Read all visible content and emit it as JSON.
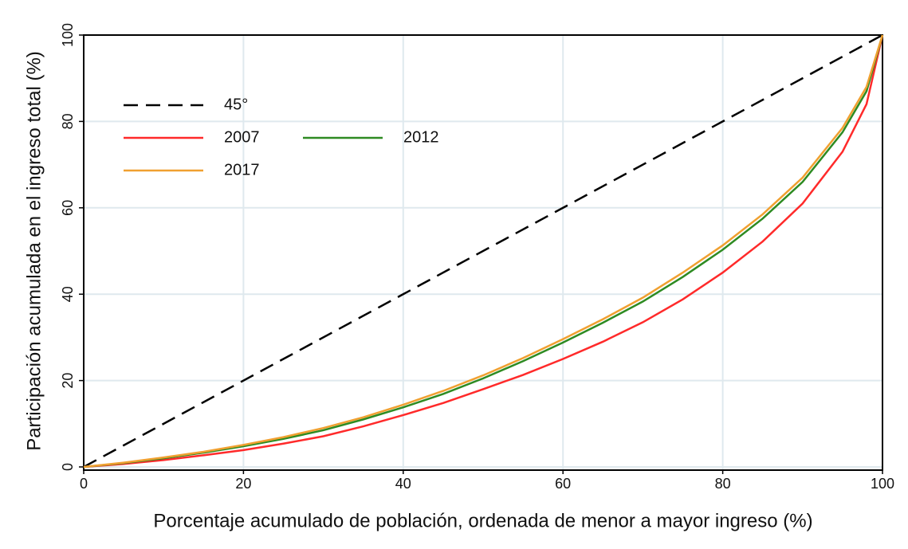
{
  "chart_data": {
    "type": "line",
    "xlabel": "Porcentaje acumulado de población, ordenada de menor a mayor ingreso  (%)",
    "ylabel": "Participación acumulada en el ingreso total (%)",
    "xlim": [
      0,
      100
    ],
    "ylim": [
      0,
      100
    ],
    "xticks": [
      0,
      20,
      40,
      60,
      80,
      100
    ],
    "yticks": [
      0,
      20,
      40,
      60,
      80,
      100
    ],
    "grid": true,
    "legend": "upper left",
    "series": [
      {
        "name": "45°",
        "color": "#000000",
        "dashed": true,
        "x": [
          0,
          100
        ],
        "values": [
          0,
          100
        ]
      },
      {
        "name": "2007",
        "color": "#ff2a2a",
        "dashed": false,
        "x": [
          0,
          5,
          10,
          15,
          20,
          25,
          30,
          35,
          40,
          45,
          50,
          55,
          60,
          65,
          70,
          75,
          80,
          85,
          90,
          95,
          98,
          100
        ],
        "values": [
          0,
          0.7,
          1.6,
          2.7,
          3.9,
          5.4,
          7.1,
          9.4,
          12,
          14.8,
          18,
          21.3,
          25,
          29,
          33.5,
          38.8,
          45,
          52.2,
          61,
          73,
          84,
          100
        ]
      },
      {
        "name": "2012",
        "color": "#2e8b22",
        "dashed": false,
        "x": [
          0,
          5,
          10,
          15,
          20,
          25,
          30,
          35,
          40,
          45,
          50,
          55,
          60,
          65,
          70,
          75,
          80,
          85,
          90,
          95,
          98,
          100
        ],
        "values": [
          0,
          0.9,
          2.0,
          3.3,
          4.8,
          6.5,
          8.5,
          11,
          13.8,
          16.9,
          20.5,
          24.5,
          28.8,
          33.4,
          38.3,
          44,
          50.3,
          57.5,
          66,
          77.5,
          87,
          100
        ]
      },
      {
        "name": "2017",
        "color": "#f0a030",
        "dashed": false,
        "x": [
          0,
          5,
          10,
          15,
          20,
          25,
          30,
          35,
          40,
          45,
          50,
          55,
          60,
          65,
          70,
          75,
          80,
          85,
          90,
          95,
          98,
          100
        ],
        "values": [
          0,
          1.0,
          2.2,
          3.5,
          5.1,
          6.9,
          9,
          11.5,
          14.4,
          17.6,
          21.2,
          25.2,
          29.6,
          34.2,
          39.2,
          45,
          51.3,
          58.5,
          67,
          78.5,
          88,
          100
        ]
      }
    ]
  }
}
